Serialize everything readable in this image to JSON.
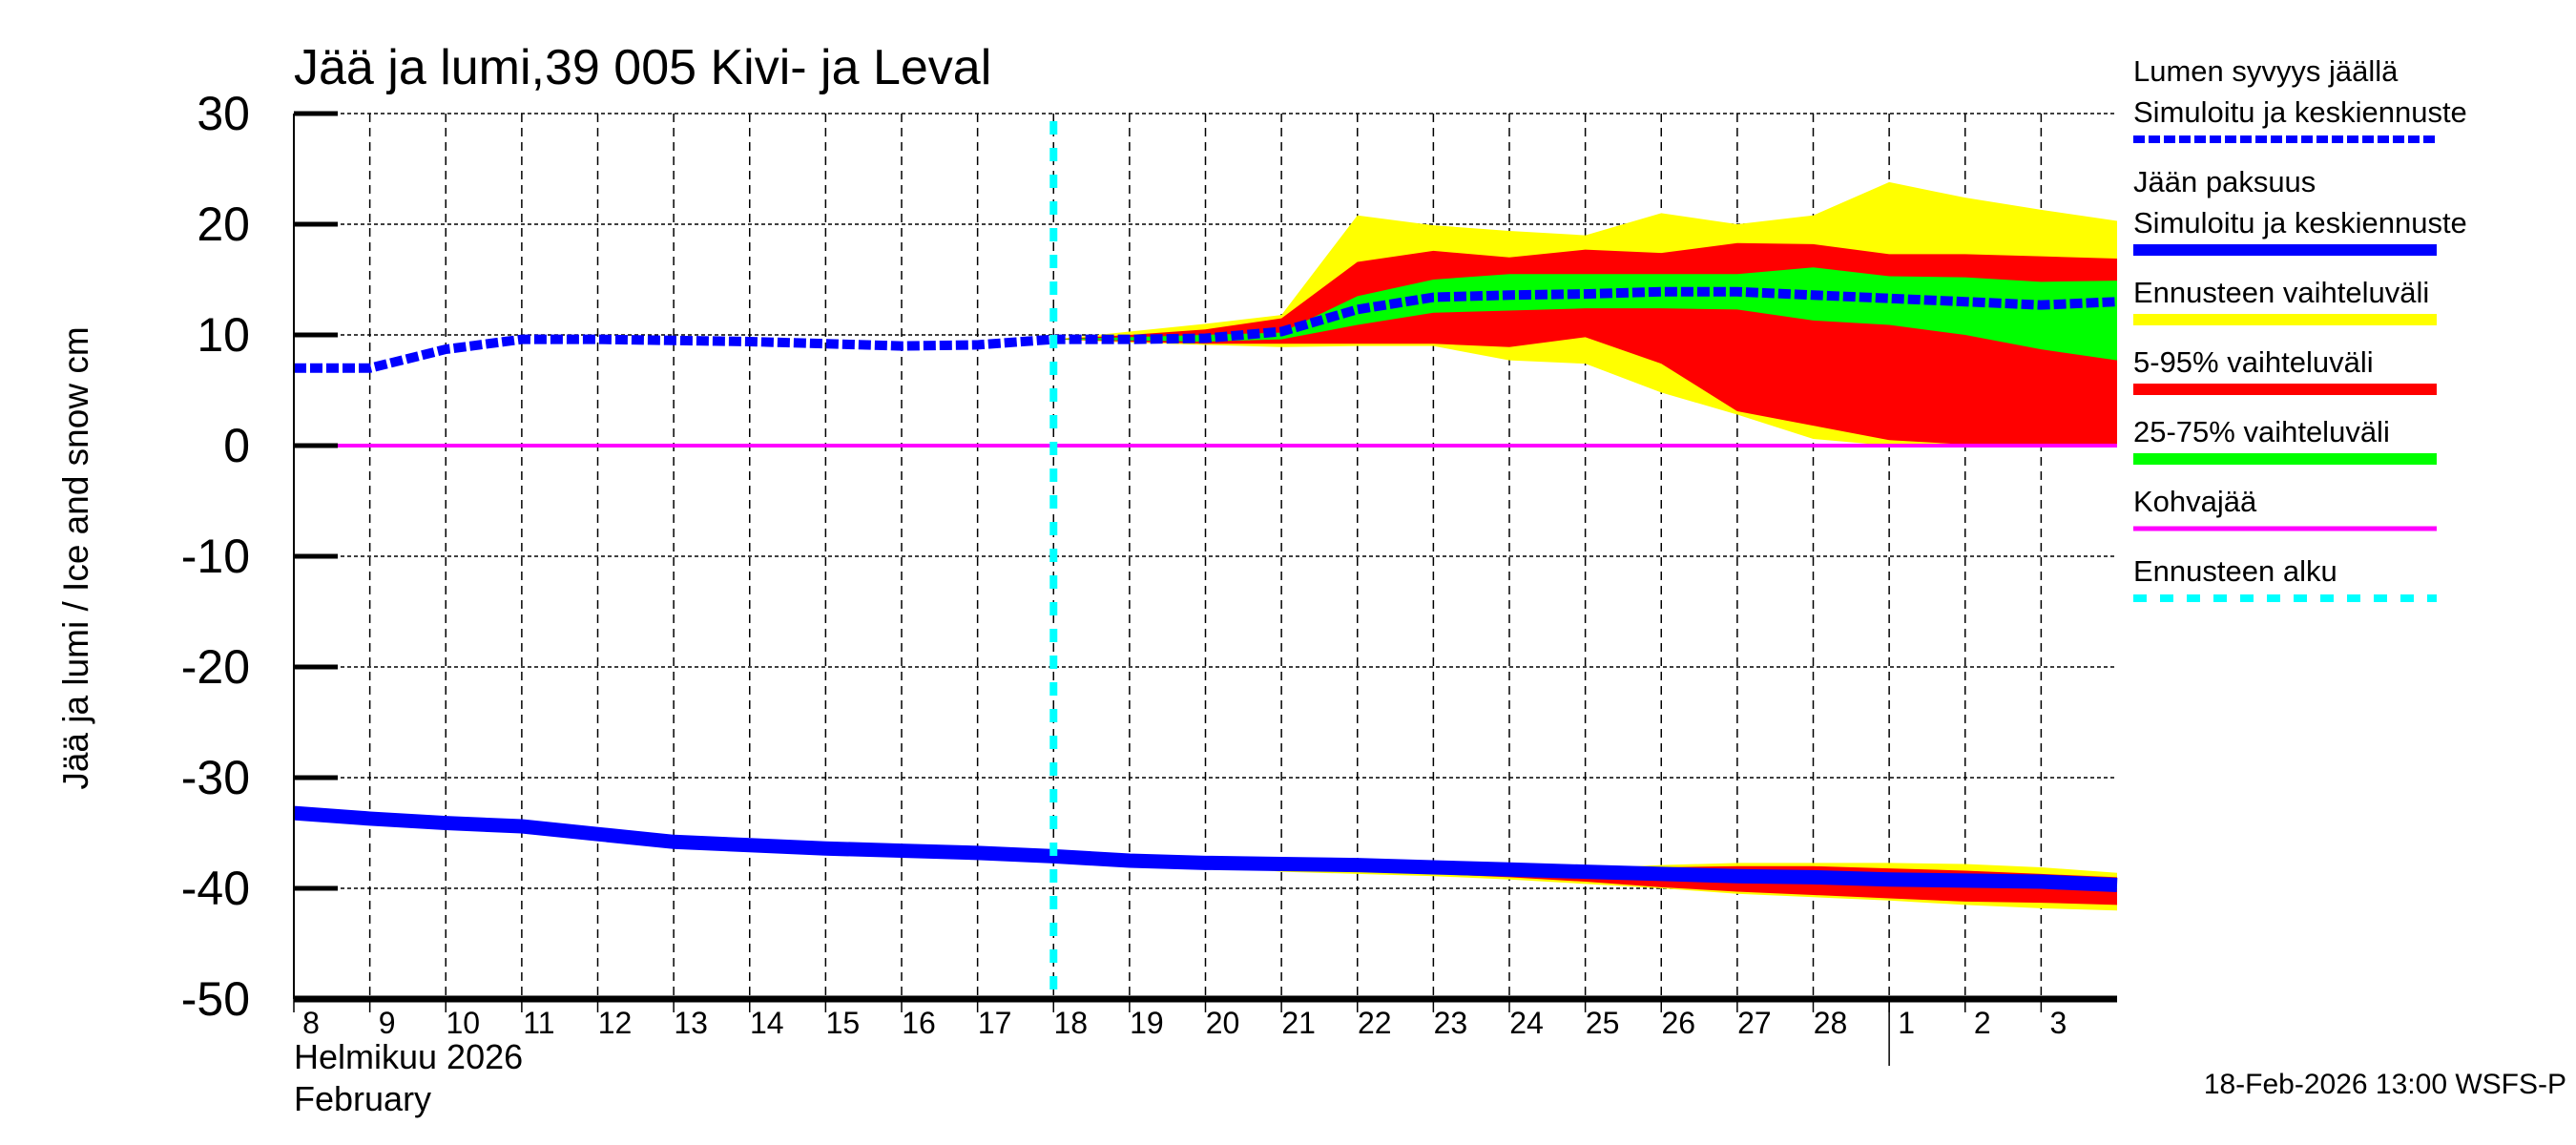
{
  "chart_data": {
    "type": "area",
    "title": "Jää ja lumi,39 005 Kivi- ja Leval",
    "ylabel": "Jää ja lumi / Ice and snow    cm",
    "xlabel_lines": [
      "Helmikuu  2026",
      "February"
    ],
    "footer": "18-Feb-2026 13:00 WSFS-P",
    "ylim": [
      -50,
      30
    ],
    "yticks": [
      30,
      20,
      10,
      0,
      -10,
      -20,
      -30,
      -40,
      -50
    ],
    "xlim": [
      "2026-02-08",
      "2026-03-04"
    ],
    "xtick_labels": [
      "8",
      "9",
      "10",
      "11",
      "12",
      "13",
      "14",
      "15",
      "16",
      "17",
      "18",
      "19",
      "20",
      "21",
      "22",
      "23",
      "24",
      "25",
      "26",
      "27",
      "28",
      "1",
      "2",
      "3"
    ],
    "grid": true,
    "legend_placement": "right",
    "dates": [
      "2026-02-08",
      "2026-02-09",
      "2026-02-10",
      "2026-02-11",
      "2026-02-12",
      "2026-02-13",
      "2026-02-14",
      "2026-02-15",
      "2026-02-16",
      "2026-02-17",
      "2026-02-18",
      "2026-02-19",
      "2026-02-20",
      "2026-02-21",
      "2026-02-22",
      "2026-02-23",
      "2026-02-24",
      "2026-02-25",
      "2026-02-26",
      "2026-02-27",
      "2026-02-28",
      "2026-03-01",
      "2026-03-02",
      "2026-03-03",
      "2026-03-04"
    ],
    "forecast_start": "2026-02-18",
    "snow_depth": [
      7.0,
      7.0,
      8.7,
      9.6,
      9.6,
      9.5,
      9.4,
      9.2,
      9.0,
      9.1,
      9.6,
      9.6,
      9.7,
      10.3,
      12.3,
      13.4,
      13.6,
      13.7,
      13.9,
      13.9,
      13.6,
      13.3,
      13.0,
      12.7,
      13.0
    ],
    "ice_thickness": [
      -33.2,
      -33.7,
      -34.1,
      -34.4,
      -35.1,
      -35.8,
      -36.1,
      -36.4,
      -36.6,
      -36.8,
      -37.1,
      -37.5,
      -37.7,
      -37.8,
      -37.9,
      -38.1,
      -38.3,
      -38.5,
      -38.7,
      -38.9,
      -39.0,
      -39.2,
      -39.3,
      -39.4,
      -39.7
    ],
    "forecast_dates": [
      "2026-02-18",
      "2026-02-19",
      "2026-02-20",
      "2026-02-21",
      "2026-02-22",
      "2026-02-23",
      "2026-02-24",
      "2026-02-25",
      "2026-02-26",
      "2026-02-27",
      "2026-02-28",
      "2026-03-01",
      "2026-03-02",
      "2026-03-03",
      "2026-03-04"
    ],
    "snow_bands": {
      "range_low": [
        9.6,
        9.3,
        9.1,
        8.9,
        9.0,
        9.0,
        7.7,
        7.4,
        4.8,
        2.8,
        0.6,
        0.0,
        0.0,
        0.0,
        0.0
      ],
      "range_high": [
        9.6,
        10.3,
        11.0,
        11.8,
        20.8,
        19.9,
        19.4,
        19.0,
        21.0,
        20.0,
        20.8,
        23.8,
        22.4,
        21.3,
        20.3
      ],
      "p5": [
        9.6,
        9.4,
        9.2,
        9.2,
        9.2,
        9.2,
        8.9,
        9.8,
        7.4,
        3.1,
        1.8,
        0.5,
        0.1,
        0.0,
        0.0
      ],
      "p95": [
        9.6,
        10.0,
        10.5,
        11.5,
        16.6,
        17.6,
        17.0,
        17.7,
        17.4,
        18.3,
        18.2,
        17.3,
        17.3,
        17.1,
        16.9
      ],
      "p25": [
        9.6,
        9.5,
        9.4,
        9.6,
        10.9,
        12.0,
        12.2,
        12.4,
        12.4,
        12.3,
        11.3,
        10.9,
        10.0,
        8.7,
        7.7
      ],
      "p75": [
        9.6,
        9.8,
        10.0,
        10.2,
        13.5,
        15.0,
        15.5,
        15.5,
        15.5,
        15.5,
        16.1,
        15.3,
        15.2,
        14.8,
        14.9
      ]
    },
    "ice_bands": {
      "range_low": [
        -37.1,
        -37.6,
        -37.9,
        -38.5,
        -38.7,
        -38.9,
        -39.2,
        -39.6,
        -40.0,
        -40.5,
        -40.8,
        -41.1,
        -41.5,
        -41.8,
        -42.0
      ],
      "range_high": [
        -37.1,
        -37.5,
        -37.7,
        -37.8,
        -37.9,
        -38.1,
        -38.2,
        -38.2,
        -37.9,
        -37.7,
        -37.7,
        -37.7,
        -37.8,
        -38.1,
        -38.6
      ],
      "p5": [
        -37.1,
        -37.5,
        -37.8,
        -38.3,
        -38.5,
        -38.7,
        -39.0,
        -39.4,
        -39.9,
        -40.3,
        -40.6,
        -40.9,
        -41.2,
        -41.3,
        -41.5
      ],
      "p95": [
        -37.1,
        -37.5,
        -37.7,
        -37.8,
        -37.9,
        -38.1,
        -38.2,
        -38.3,
        -38.1,
        -38.0,
        -38.0,
        -38.2,
        -38.4,
        -38.7,
        -39.0
      ],
      "p25": [
        -37.1,
        -37.6,
        -37.9,
        -38.1,
        -38.2,
        -38.4,
        -38.6,
        -38.8,
        -39.0,
        -39.2,
        -39.3,
        -39.5,
        -39.6,
        -39.7,
        -40.0
      ],
      "p75": [
        -37.1,
        -37.4,
        -37.6,
        -37.6,
        -37.7,
        -37.9,
        -38.1,
        -38.2,
        -38.4,
        -38.6,
        -38.7,
        -38.9,
        -39.0,
        -39.1,
        -39.4
      ]
    },
    "kohvajaa": 0,
    "colors": {
      "snow": "#0000ff",
      "ice": "#0000ff",
      "range": "#ffff00",
      "p5_95": "#ff0000",
      "p25_75": "#00ff00",
      "kohvajaa": "#ff00ff",
      "forecast_start": "#00ffff"
    },
    "legend": [
      {
        "label": "Lumen syvyys jäällä",
        "sub": "Simuloitu ja keskiennuste",
        "style": "snow"
      },
      {
        "label": "Jään paksuus",
        "sub": "Simuloitu ja keskiennuste",
        "style": "ice"
      },
      {
        "label": "Ennusteen vaihteluväli",
        "style": "range"
      },
      {
        "label": "5-95% vaihteluväli",
        "style": "p5_95"
      },
      {
        "label": "25-75% vaihteluväli",
        "style": "p25_75"
      },
      {
        "label": "Kohvajää",
        "style": "kohvajaa"
      },
      {
        "label": "Ennusteen alku",
        "style": "forecast_start"
      }
    ]
  }
}
